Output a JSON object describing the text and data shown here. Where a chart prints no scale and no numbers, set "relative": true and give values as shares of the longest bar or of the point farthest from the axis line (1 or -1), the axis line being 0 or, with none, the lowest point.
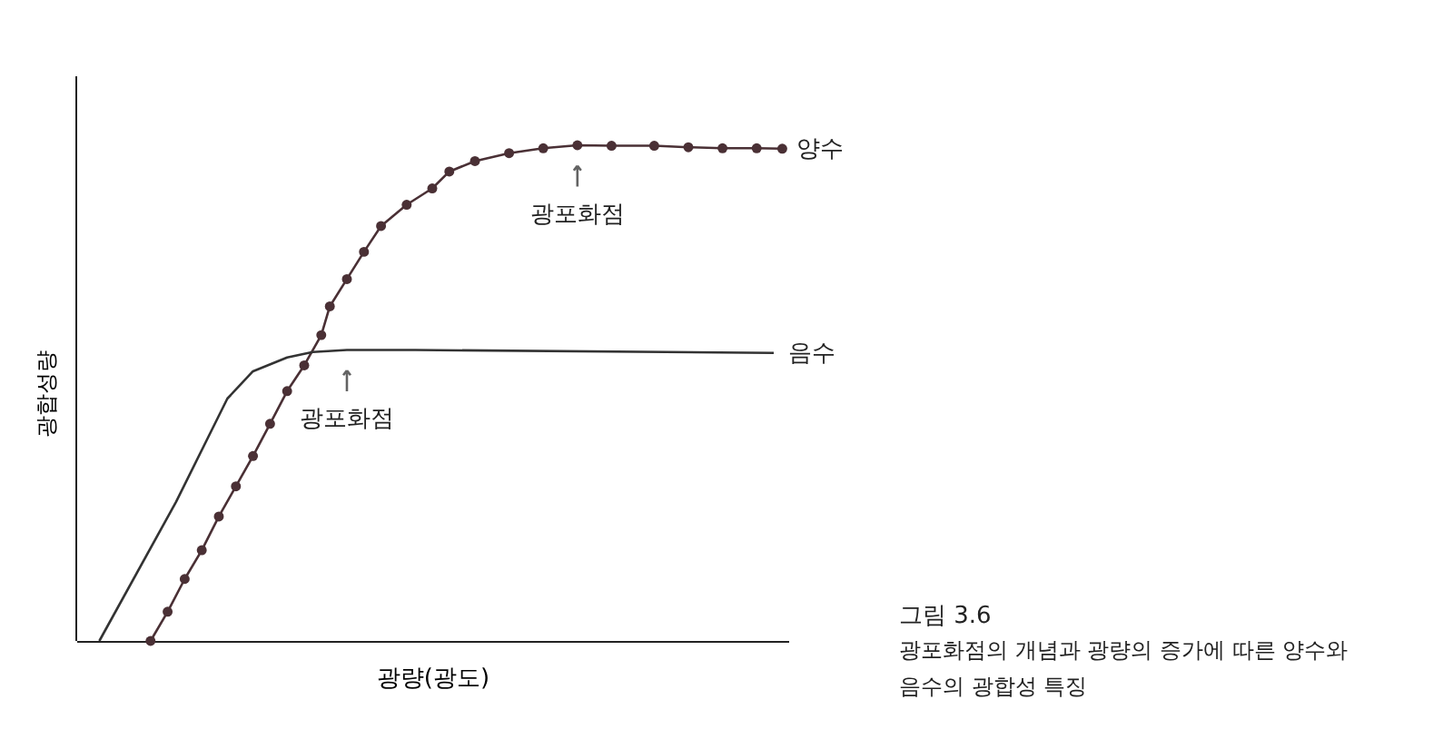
{
  "chart_data": {
    "type": "line",
    "relative": true,
    "xlabel": "광량(광도)",
    "ylabel": "광합성량",
    "grid": false,
    "tick_labels": false,
    "line_style": "solid",
    "categories": [
      null,
      null,
      null,
      null,
      null,
      null,
      null,
      null,
      null,
      null,
      null,
      null,
      null,
      null,
      null,
      null,
      null,
      null,
      null,
      null,
      null,
      null,
      null,
      null,
      null,
      null,
      null,
      null,
      null,
      null,
      null,
      null,
      null,
      null,
      null,
      null,
      null,
      null,
      null,
      null,
      null,
      null,
      null,
      null,
      null,
      null,
      null,
      null,
      null,
      null,
      null,
      null,
      null,
      null,
      null,
      null,
      null,
      null,
      null,
      null,
      null,
      null,
      null,
      null,
      null,
      null,
      null,
      null,
      null,
      null,
      null,
      null,
      null,
      null,
      null,
      null,
      null,
      null,
      null,
      null,
      null
    ],
    "series": [
      {
        "name": "양수",
        "color": "#4a3035",
        "marker": "circle",
        "values": [
          null,
          null,
          null,
          null,
          null,
          null,
          0,
          null,
          0.059,
          null,
          0.125,
          null,
          0.183,
          null,
          0.251,
          null,
          0.312,
          null,
          0.373,
          null,
          0.438,
          null,
          0.504,
          null,
          0.556,
          null,
          0.617,
          0.675,
          null,
          0.73,
          null,
          0.785,
          null,
          0.837,
          null,
          null,
          0.88,
          null,
          null,
          0.913,
          null,
          0.947,
          null,
          null,
          0.968,
          null,
          null,
          null,
          0.984,
          null,
          null,
          null,
          0.994,
          null,
          null,
          null,
          1,
          null,
          null,
          null,
          0.999,
          null,
          null,
          null,
          null,
          0.999,
          null,
          null,
          null,
          0.996,
          null,
          null,
          null,
          0.994,
          null,
          null,
          null,
          0.994,
          null,
          null,
          0.993
        ]
      },
      {
        "name": "음수",
        "color": "#333333",
        "marker": "none",
        "values": [
          0,
          null,
          null,
          null,
          null,
          null,
          null,
          null,
          null,
          0.281,
          null,
          null,
          null,
          null,
          null,
          0.489,
          null,
          null,
          0.544,
          null,
          null,
          null,
          0.572,
          null,
          null,
          0.583,
          null,
          null,
          null,
          0.587,
          null,
          null,
          null,
          null,
          null,
          null,
          null,
          0.587,
          null,
          null,
          null,
          null,
          null,
          null,
          null,
          null,
          null,
          null,
          null,
          null,
          null,
          null,
          null,
          null,
          null,
          null,
          null,
          null,
          null,
          null,
          null,
          null,
          null,
          null,
          null,
          null,
          null,
          null,
          null,
          null,
          null,
          null,
          null,
          null,
          null,
          null,
          null,
          null,
          null,
          0.581,
          null
        ]
      }
    ],
    "annotations": [
      {
        "text": "광포화점",
        "y": 1
      },
      {
        "text": "광포화점",
        "y": 0.587
      },
      "그림 3.6",
      "광포화점의 개념과 광량의 증가에 따른 양수와 음수의 광합성 특징"
    ]
  }
}
